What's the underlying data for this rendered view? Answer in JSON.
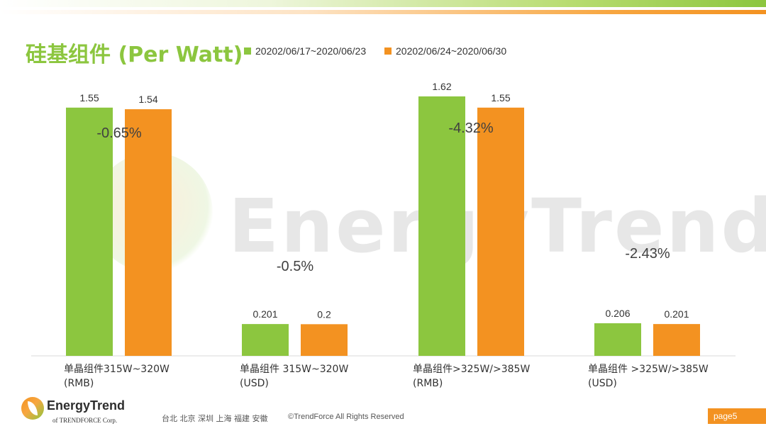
{
  "chart_data": {
    "type": "bar",
    "title": "硅基组件 (Per Watt)",
    "categories": [
      "单晶组件315W~320W\n(RMB)",
      "单晶组件 315W~320W\n(USD)",
      "单晶组件>325W/>385W\n(RMB)",
      "单晶组件 >325W/>385W\n(USD)"
    ],
    "series": [
      {
        "name": "20202/06/17~2020/06/23",
        "color": "#8cc63f",
        "values": [
          1.55,
          0.201,
          1.62,
          0.206
        ],
        "labels": [
          "1.55",
          "0.201",
          "1.62",
          "0.206"
        ]
      },
      {
        "name": "20202/06/24~2020/06/30",
        "color": "#f39221",
        "values": [
          1.54,
          0.2,
          1.55,
          0.201
        ],
        "labels": [
          "1.54",
          "0.2",
          "1.55",
          "0.201"
        ]
      }
    ],
    "changes": [
      "-0.65%",
      "-0.5%",
      "-4.32%",
      "-2.43%"
    ],
    "scale_groups": [
      [
        0,
        2
      ],
      [
        1,
        3
      ]
    ],
    "legend_position": "top",
    "grid": false
  },
  "watermark": "EnergyTrend",
  "footer": {
    "logo_text": "EnergyTrend",
    "logo_sub": "of TRENDFORCE Corp.",
    "cities": "台北 北京 深圳 上海 福建 安徽",
    "copyright": "©TrendForce All Rights Reserved",
    "page": "page5"
  }
}
